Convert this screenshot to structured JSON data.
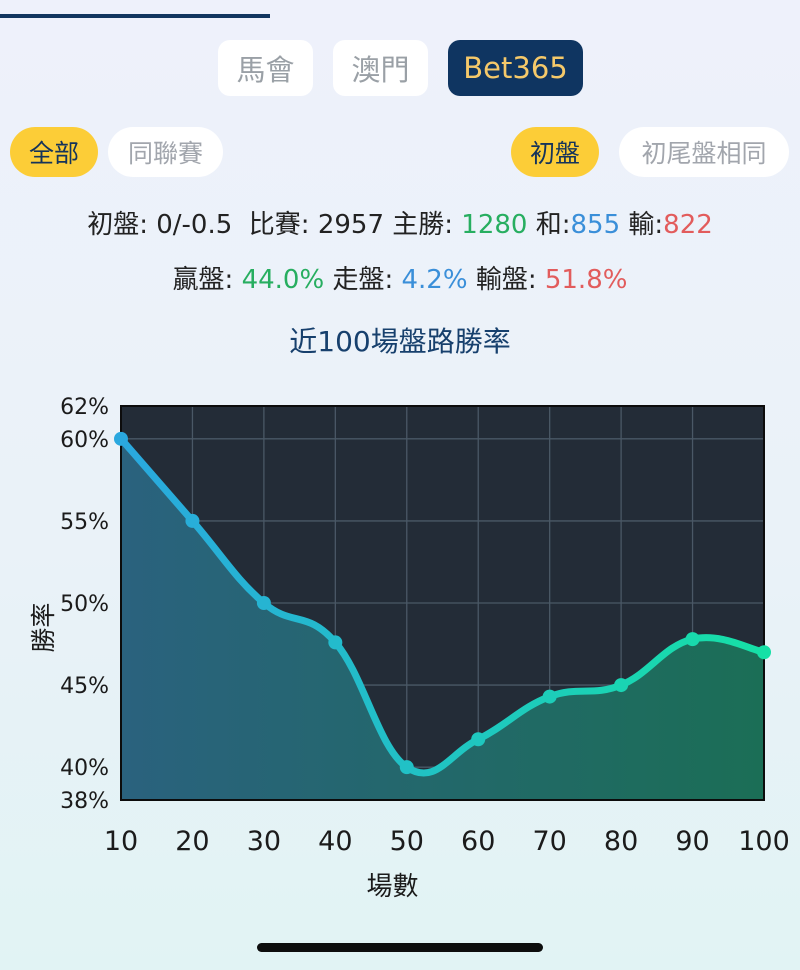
{
  "tabs": [
    {
      "label": "馬會",
      "active": false
    },
    {
      "label": "澳門",
      "active": false
    },
    {
      "label": "Bet365",
      "active": true
    }
  ],
  "filters_left": [
    {
      "label": "全部",
      "active": true
    },
    {
      "label": "同聯賽",
      "active": false
    }
  ],
  "filters_right": [
    {
      "label": "初盤",
      "active": true
    },
    {
      "label": "初尾盤相同",
      "active": false
    }
  ],
  "stats": {
    "handicap_label": "初盤:",
    "handicap_value": "0/-0.5",
    "matches_label": "比賽:",
    "matches_value": "2957",
    "home_win_label": "主勝:",
    "home_win_value": "1280",
    "draw_label": "和:",
    "draw_value": "855",
    "lose_label": "輸:",
    "lose_value": "822",
    "win_plate_label": "贏盤:",
    "win_plate_value": "44.0%",
    "push_label": "走盤:",
    "push_value": "4.2%",
    "lose_plate_label": "輸盤:",
    "lose_plate_value": "51.8%"
  },
  "colors": {
    "green": "#27ae60",
    "blue": "#3a8fd9",
    "red": "#e25c5c",
    "navy": "#0f3561",
    "yellow": "#fccd37",
    "plot_bg": "#232c37"
  },
  "chart_data": {
    "type": "line",
    "title": "近100場盤路勝率",
    "xlabel": "場數",
    "ylabel": "勝率",
    "x": [
      10,
      20,
      30,
      40,
      50,
      60,
      70,
      80,
      90,
      100
    ],
    "values": [
      60,
      55,
      50,
      47.6,
      40,
      41.7,
      44.3,
      45,
      47.8,
      47
    ],
    "ylim": [
      38,
      62
    ],
    "yticks": [
      "62%",
      "60%",
      "55%",
      "50%",
      "45%",
      "40%",
      "38%"
    ],
    "ytick_values": [
      62,
      60,
      55,
      50,
      45,
      40,
      38
    ],
    "xticks": [
      "10",
      "20",
      "30",
      "40",
      "50",
      "60",
      "70",
      "80",
      "90",
      "100"
    ],
    "grid": true,
    "line_gradient": [
      "#2aa8df",
      "#16e0a6"
    ],
    "fill_gradient": [
      "#2a627e",
      "#1b6e56"
    ]
  }
}
